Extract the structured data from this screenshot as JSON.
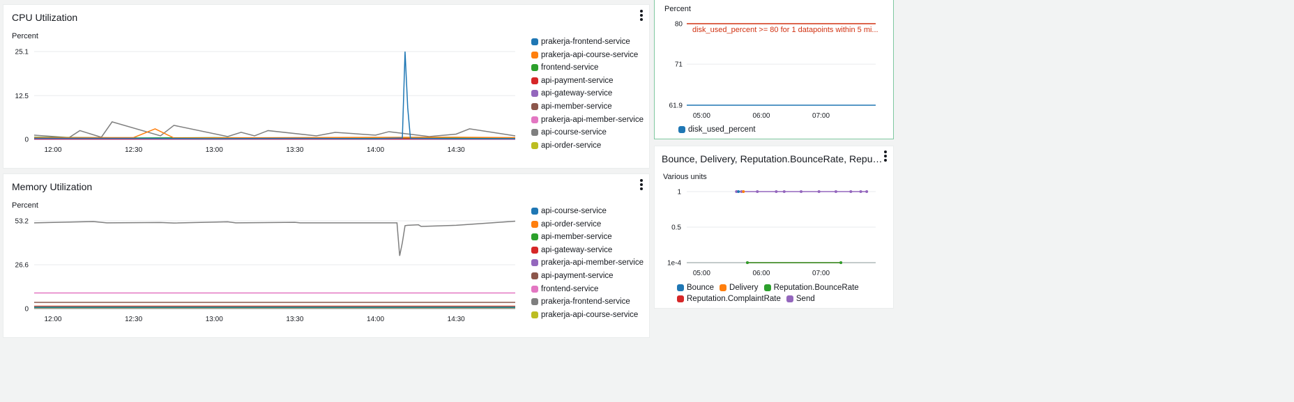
{
  "colors": {
    "series": [
      "#1f77b4",
      "#ff7f0e",
      "#2ca02c",
      "#d62728",
      "#9467bd",
      "#8c564b",
      "#e377c2",
      "#7f7f7f",
      "#bcbd22"
    ],
    "threshold": "#d13212",
    "grid": "#e9ebed",
    "axis": "#879596"
  },
  "widgets": {
    "cpu": {
      "title": "CPU Utilization",
      "menu_icon": "kebab-menu-icon"
    },
    "memory": {
      "title": "Memory Utilization",
      "menu_icon": "kebab-menu-icon"
    },
    "disk": {
      "menu_icon": "kebab-menu-icon"
    },
    "ses": {
      "title": "Bounce, Delivery, Reputation.BounceRate, Reputation.Co...",
      "menu_icon": "kebab-menu-icon"
    }
  },
  "chart_data": [
    {
      "id": "cpu",
      "type": "line",
      "title": "CPU Utilization",
      "ylabel": "Percent",
      "ylim": [
        0,
        25.1
      ],
      "yticks": [
        "25.1",
        "12.5",
        "0"
      ],
      "ytick_values": [
        25.1,
        12.5,
        0
      ],
      "xlim": [
        "11:53",
        "14:52"
      ],
      "xticks": [
        "12:00",
        "12:30",
        "13:00",
        "13:30",
        "14:00",
        "14:30"
      ],
      "grid": true,
      "legend_position": "right",
      "series": [
        {
          "name": "prakerja-frontend-service",
          "color": "#1f77b4",
          "x": [
            "11:53",
            "12:30",
            "13:00",
            "13:30",
            "14:00",
            "14:10",
            "14:11",
            "14:12",
            "14:13",
            "14:30",
            "14:52"
          ],
          "values": [
            0.3,
            0.3,
            0.2,
            0.3,
            0.2,
            0.4,
            25.1,
            9.0,
            0.3,
            0.2,
            0.2
          ]
        },
        {
          "name": "prakerja-api-course-service",
          "color": "#ff7f0e",
          "x": [
            "11:53",
            "12:30",
            "12:38",
            "12:45",
            "13:30",
            "14:30",
            "14:52"
          ],
          "values": [
            0.5,
            0.5,
            3.0,
            0.4,
            0.5,
            0.6,
            0.5
          ]
        },
        {
          "name": "frontend-service",
          "color": "#2ca02c",
          "x": [
            "11:53",
            "12:30",
            "13:00",
            "13:30",
            "14:00",
            "14:52"
          ],
          "values": [
            0.6,
            0.4,
            0.5,
            0.4,
            0.5,
            0.4
          ]
        },
        {
          "name": "api-payment-service",
          "color": "#d62728",
          "x": [
            "11:53",
            "14:52"
          ],
          "values": [
            0.2,
            0.2
          ]
        },
        {
          "name": "api-gateway-service",
          "color": "#9467bd",
          "x": [
            "11:53",
            "14:52"
          ],
          "values": [
            0.1,
            0.1
          ]
        },
        {
          "name": "api-member-service",
          "color": "#8c564b",
          "x": [
            "11:53",
            "14:52"
          ],
          "values": [
            0.1,
            0.1
          ]
        },
        {
          "name": "prakerja-api-member-service",
          "color": "#e377c2",
          "x": [
            "11:53",
            "14:52"
          ],
          "values": [
            0.0,
            0.0
          ]
        },
        {
          "name": "api-course-service",
          "color": "#7f7f7f",
          "x": [
            "11:53",
            "12:06",
            "12:10",
            "12:18",
            "12:22",
            "12:40",
            "12:45",
            "13:05",
            "13:10",
            "13:15",
            "13:20",
            "13:38",
            "13:45",
            "14:00",
            "14:05",
            "14:20",
            "14:30",
            "14:35",
            "14:52"
          ],
          "values": [
            1.2,
            0.5,
            2.5,
            0.6,
            5.0,
            1.0,
            4.0,
            0.8,
            2.0,
            1.0,
            2.5,
            1.0,
            2.0,
            1.2,
            2.2,
            0.8,
            1.5,
            3.0,
            1.0
          ]
        },
        {
          "name": "api-order-service",
          "color": "#bcbd22",
          "x": [
            "11:53",
            "14:52"
          ],
          "values": [
            0.3,
            0.3
          ]
        }
      ]
    },
    {
      "id": "memory",
      "type": "line",
      "title": "Memory Utilization",
      "ylabel": "Percent",
      "ylim": [
        0,
        53.2
      ],
      "yticks": [
        "53.2",
        "26.6",
        "0"
      ],
      "ytick_values": [
        53.2,
        26.6,
        0
      ],
      "xlim": [
        "11:53",
        "14:52"
      ],
      "xticks": [
        "12:00",
        "12:30",
        "13:00",
        "13:30",
        "14:00",
        "14:30"
      ],
      "grid": true,
      "legend_position": "right",
      "series": [
        {
          "name": "api-course-service",
          "color": "#1f77b4",
          "x": [
            "11:53",
            "14:52"
          ],
          "values": [
            1.0,
            1.0
          ]
        },
        {
          "name": "api-order-service",
          "color": "#ff7f0e",
          "x": [
            "11:53",
            "14:52"
          ],
          "values": [
            1.2,
            1.2
          ]
        },
        {
          "name": "api-member-service",
          "color": "#2ca02c",
          "x": [
            "11:53",
            "14:52"
          ],
          "values": [
            0.8,
            0.8
          ]
        },
        {
          "name": "api-gateway-service",
          "color": "#d62728",
          "x": [
            "11:53",
            "14:52"
          ],
          "values": [
            1.5,
            1.5
          ]
        },
        {
          "name": "prakerja-api-member-service",
          "color": "#9467bd",
          "x": [
            "11:53",
            "14:52"
          ],
          "values": [
            0.6,
            0.6
          ]
        },
        {
          "name": "api-payment-service",
          "color": "#8c564b",
          "x": [
            "11:53",
            "14:52"
          ],
          "values": [
            3.8,
            3.8
          ]
        },
        {
          "name": "frontend-service",
          "color": "#e377c2",
          "x": [
            "11:53",
            "14:52"
          ],
          "values": [
            9.5,
            9.5
          ]
        },
        {
          "name": "prakerja-frontend-service",
          "color": "#7f7f7f",
          "x": [
            "11:53",
            "12:15",
            "12:20",
            "12:40",
            "12:45",
            "13:05",
            "13:08",
            "13:30",
            "13:32",
            "14:08",
            "14:09",
            "14:10",
            "14:11",
            "14:12",
            "14:16",
            "14:17",
            "14:30",
            "14:52"
          ],
          "values": [
            52.0,
            52.8,
            52.0,
            52.2,
            51.9,
            52.6,
            52.0,
            52.3,
            52.0,
            52.0,
            32.0,
            40.0,
            50.3,
            50.5,
            50.8,
            49.8,
            50.5,
            53.0
          ]
        },
        {
          "name": "prakerja-api-course-service",
          "color": "#bcbd22",
          "x": [
            "11:53",
            "14:52"
          ],
          "values": [
            0.4,
            0.4
          ]
        }
      ]
    },
    {
      "id": "disk",
      "type": "line",
      "ylabel": "Percent",
      "ylim": [
        61.9,
        80
      ],
      "yticks": [
        "80",
        "71",
        "61.9"
      ],
      "ytick_values": [
        80,
        71,
        61.9
      ],
      "xlim": [
        "04:45",
        "07:55"
      ],
      "xticks": [
        "05:00",
        "06:00",
        "07:00"
      ],
      "grid": true,
      "legend_position": "bottom",
      "threshold": {
        "value": 80,
        "label": "disk_used_percent >= 80 for 1 datapoints within 5 mi..."
      },
      "series": [
        {
          "name": "disk_used_percent",
          "color": "#1f77b4",
          "x": [
            "04:45",
            "07:55"
          ],
          "values": [
            61.9,
            61.9
          ]
        }
      ]
    },
    {
      "id": "ses",
      "type": "line",
      "title": "Bounce, Delivery, Reputation.BounceRate, Reputation.Co...",
      "ylabel": "Various units",
      "ylim": [
        0.0001,
        1
      ],
      "yticks": [
        "1",
        "0.5",
        "1e-4"
      ],
      "ytick_values": [
        1,
        0.5,
        0.0001
      ],
      "xlim": [
        "04:45",
        "07:55"
      ],
      "xticks": [
        "05:00",
        "06:00",
        "07:00"
      ],
      "grid": true,
      "legend_position": "bottom",
      "series": [
        {
          "name": "Bounce",
          "color": "#1f77b4",
          "x": [
            "05:37"
          ],
          "values": [
            1
          ]
        },
        {
          "name": "Delivery",
          "color": "#ff7f0e",
          "x": [
            "05:42"
          ],
          "values": [
            1
          ]
        },
        {
          "name": "Reputation.BounceRate",
          "color": "#2ca02c",
          "x": [
            "05:46",
            "07:20"
          ],
          "values": [
            0.0001,
            0.0001
          ]
        },
        {
          "name": "Reputation.ComplaintRate",
          "color": "#d62728",
          "x": [
            "05:46",
            "07:20"
          ],
          "values": [
            0.0001,
            0.0001
          ]
        },
        {
          "name": "Send",
          "color": "#9467bd",
          "x": [
            "05:35",
            "05:40",
            "05:56",
            "06:15",
            "06:23",
            "06:40",
            "06:58",
            "07:15",
            "07:30",
            "07:40",
            "07:46"
          ],
          "values": [
            1,
            1,
            1,
            1,
            1,
            1,
            1,
            1,
            1,
            1,
            1
          ]
        }
      ]
    }
  ]
}
